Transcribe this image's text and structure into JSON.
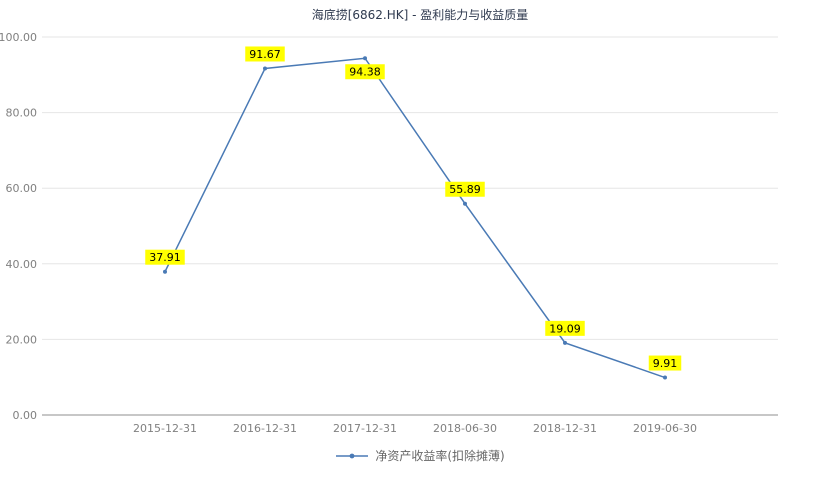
{
  "chart_data": {
    "type": "line",
    "title": "海底捞[6862.HK] - 盈利能力与收益质量",
    "categories": [
      "2015-12-31",
      "2016-12-31",
      "2017-12-31",
      "2018-06-30",
      "2018-12-31",
      "2019-06-30"
    ],
    "series": [
      {
        "name": "净资产收益率(扣除摊薄)",
        "values": [
          37.91,
          91.67,
          94.38,
          55.89,
          19.09,
          9.91
        ],
        "color": "#4a7ab5"
      }
    ],
    "ylim": [
      0,
      100
    ],
    "ytick_labels": [
      "0.00",
      "20.00",
      "40.00",
      "60.00",
      "80.00",
      "100.00"
    ],
    "grid": true,
    "legend_position": "bottom",
    "value_label_bg": "#ffff00",
    "value_label_color": "#000000",
    "label_below_indices": [
      2
    ],
    "grid_color": "#e6e6e6",
    "axis_color": "#8f8f8f",
    "tick_text_color": "#808080"
  }
}
